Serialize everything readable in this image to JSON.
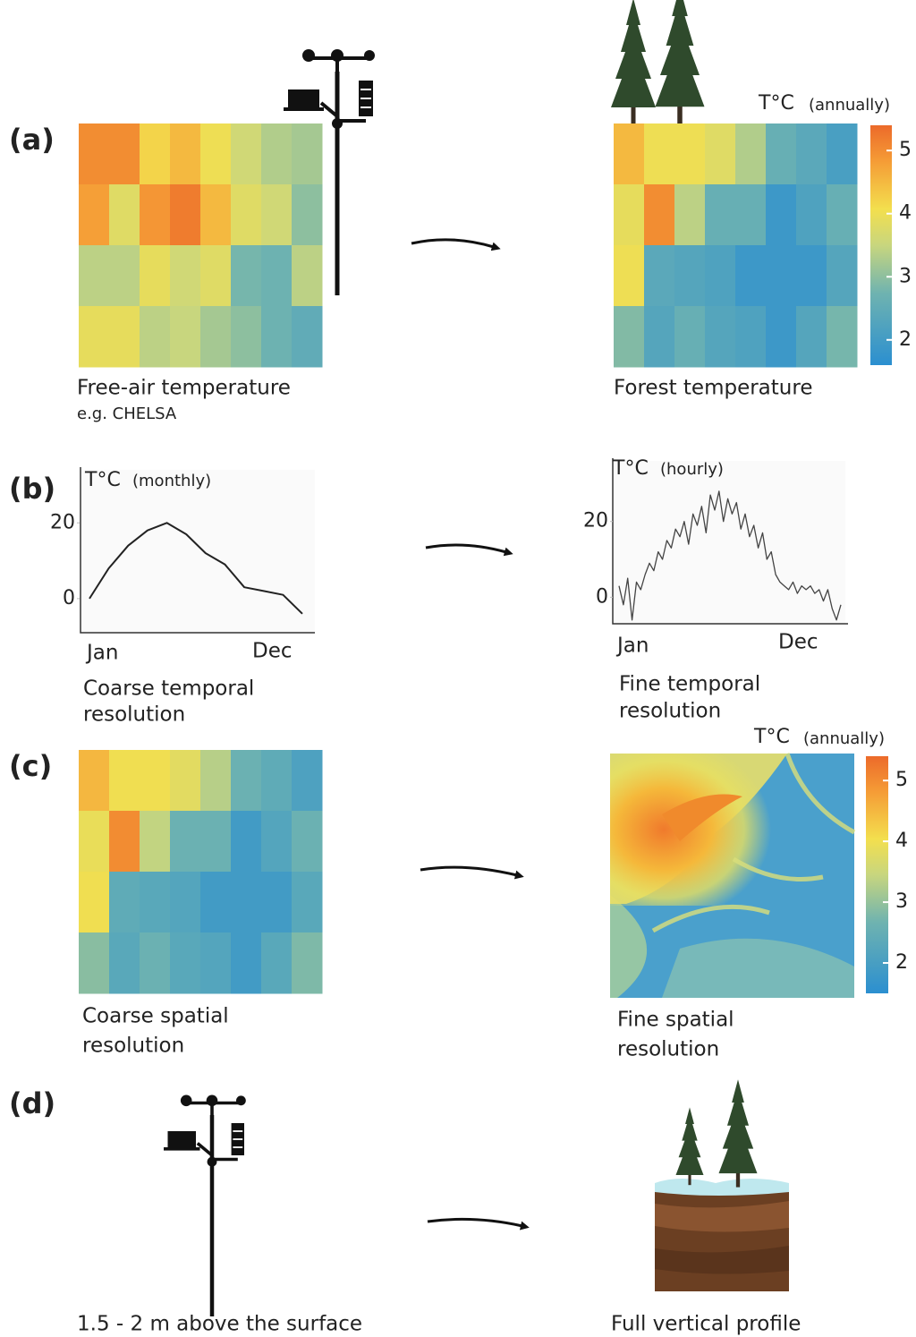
{
  "panel_a": {
    "label": "(a)",
    "left_caption": "Free-air temperature",
    "left_subcaption": "e.g. CHELSA",
    "left_grid": [
      [
        5.0,
        5.0,
        4.2,
        4.5,
        4.0,
        3.6,
        3.3,
        3.2
      ],
      [
        4.8,
        3.8,
        4.9,
        5.2,
        4.5,
        3.8,
        3.6,
        3.0
      ],
      [
        3.4,
        3.4,
        3.9,
        3.6,
        3.8,
        2.8,
        2.7,
        3.4
      ],
      [
        3.9,
        3.9,
        3.4,
        3.5,
        3.2,
        3.0,
        2.7,
        2.5
      ]
    ],
    "right_caption": "Forest temperature",
    "right_grid": [
      [
        4.5,
        4.0,
        4.0,
        3.8,
        3.3,
        2.6,
        2.4,
        2.1
      ],
      [
        3.9,
        5.0,
        3.4,
        2.6,
        2.6,
        1.9,
        2.2,
        2.6
      ],
      [
        4.0,
        2.4,
        2.3,
        2.2,
        1.9,
        1.9,
        1.9,
        2.3
      ],
      [
        2.9,
        2.3,
        2.6,
        2.3,
        2.2,
        1.9,
        2.3,
        2.8
      ]
    ],
    "colorbar": {
      "unit": "T°C",
      "period": "(annually)",
      "lim": [
        1.6,
        5.4
      ],
      "ticks": [
        2,
        3,
        4,
        5
      ]
    }
  },
  "panel_b": {
    "label": "(b)",
    "left": {
      "unit": "T°C",
      "period": "(monthly)",
      "ylim": [
        -9,
        34
      ],
      "yticks": [
        0,
        20
      ],
      "start": "Jan",
      "end": "Dec",
      "values": [
        0,
        8,
        14,
        18,
        20,
        17,
        12,
        9,
        3,
        2,
        1,
        -4
      ],
      "caption": [
        "Coarse temporal",
        "resolution"
      ]
    },
    "right": {
      "unit": "T°C",
      "period": "(hourly)",
      "ylim": [
        -7,
        36
      ],
      "yticks": [
        0,
        20
      ],
      "start": "Jan",
      "end": "Dec",
      "values": [
        3,
        -2,
        5,
        -6,
        4,
        2,
        6,
        9,
        7,
        12,
        10,
        15,
        13,
        18,
        16,
        20,
        14,
        22,
        19,
        24,
        17,
        27,
        23,
        28,
        20,
        26,
        22,
        25,
        18,
        22,
        16,
        19,
        13,
        17,
        10,
        12,
        6,
        4,
        3,
        2,
        4,
        1,
        3,
        2,
        3,
        1,
        2,
        -1,
        2,
        -3,
        -6,
        -2
      ],
      "caption": [
        "Fine temporal",
        "resolution"
      ]
    }
  },
  "panel_c": {
    "label": "(c)",
    "left_grid": [
      [
        4.5,
        4.0,
        4.0,
        3.8,
        3.3,
        2.6,
        2.4,
        2.1
      ],
      [
        3.9,
        5.0,
        3.4,
        2.6,
        2.6,
        1.9,
        2.2,
        2.6
      ],
      [
        4.0,
        2.4,
        2.3,
        2.2,
        1.9,
        1.9,
        1.9,
        2.3
      ],
      [
        2.9,
        2.3,
        2.6,
        2.3,
        2.2,
        1.9,
        2.3,
        2.8
      ]
    ],
    "left_caption": [
      "Coarse spatial",
      "resolution"
    ],
    "right_caption": [
      "Fine spatial",
      "resolution"
    ],
    "colorbar": {
      "unit": "T°C",
      "period": "(annually)",
      "lim": [
        1.5,
        5.4
      ],
      "ticks": [
        2,
        3,
        4,
        5
      ]
    }
  },
  "panel_d": {
    "label": "(d)",
    "left_caption": "1.5 - 2 m above the surface",
    "right_caption": "Full vertical profile"
  }
}
